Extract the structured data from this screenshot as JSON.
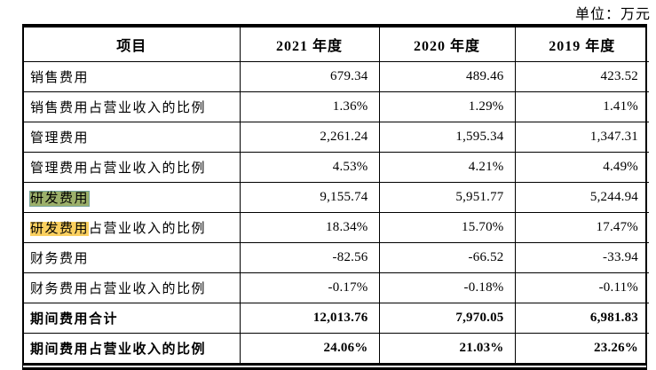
{
  "page": {
    "unit_label": "单位：万元"
  },
  "table": {
    "headers": [
      "项目",
      "2021 年度",
      "2020 年度",
      "2019 年度"
    ],
    "highlight_colors": {
      "green": "#9cb06a",
      "yellow": "#fbd05f"
    },
    "rows": [
      {
        "label_parts": [
          {
            "text": "销售费用"
          }
        ],
        "values": [
          "679.34",
          "489.46",
          "423.52"
        ],
        "bold": false
      },
      {
        "label_parts": [
          {
            "text": "销售费用占营业收入的比例"
          }
        ],
        "values": [
          "1.36%",
          "1.29%",
          "1.41%"
        ],
        "bold": false
      },
      {
        "label_parts": [
          {
            "text": "管理费用"
          }
        ],
        "values": [
          "2,261.24",
          "1,595.34",
          "1,347.31"
        ],
        "bold": false
      },
      {
        "label_parts": [
          {
            "text": "管理费用占营业收入的比例"
          }
        ],
        "values": [
          "4.53%",
          "4.21%",
          "4.49%"
        ],
        "bold": false
      },
      {
        "label_parts": [
          {
            "text": "研发费用",
            "highlight": "green"
          }
        ],
        "values": [
          "9,155.74",
          "5,951.77",
          "5,244.94"
        ],
        "bold": false
      },
      {
        "label_parts": [
          {
            "text": "研发费用",
            "highlight": "yellow"
          },
          {
            "text": "占营业收入的比例"
          }
        ],
        "values": [
          "18.34%",
          "15.70%",
          "17.47%"
        ],
        "bold": false
      },
      {
        "label_parts": [
          {
            "text": "财务费用"
          }
        ],
        "values": [
          "-82.56",
          "-66.52",
          "-33.94"
        ],
        "bold": false
      },
      {
        "label_parts": [
          {
            "text": "财务费用占营业收入的比例"
          }
        ],
        "values": [
          "-0.17%",
          "-0.18%",
          "-0.11%"
        ],
        "bold": false
      },
      {
        "label_parts": [
          {
            "text": "期间费用合计"
          }
        ],
        "values": [
          "12,013.76",
          "7,970.05",
          "6,981.83"
        ],
        "bold": true
      },
      {
        "label_parts": [
          {
            "text": "期间费用占营业收入的比例"
          }
        ],
        "values": [
          "24.06%",
          "21.03%",
          "23.26%"
        ],
        "bold": true
      }
    ]
  }
}
